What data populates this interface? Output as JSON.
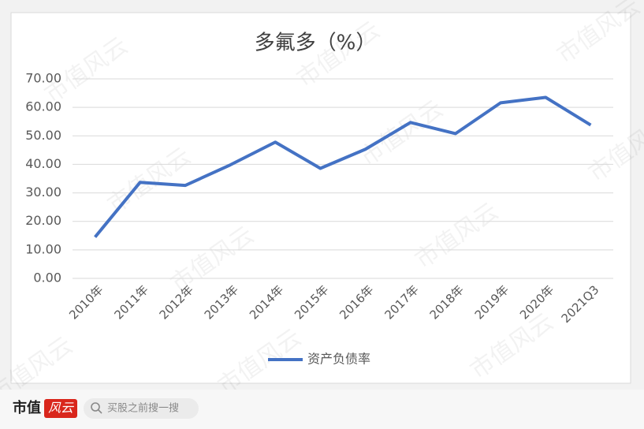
{
  "chart_data": {
    "type": "line",
    "title": "多氟多（%）",
    "categories": [
      "2010年",
      "2011年",
      "2012年",
      "2013年",
      "2014年",
      "2015年",
      "2016年",
      "2017年",
      "2018年",
      "2019年",
      "2020年",
      "2021Q3"
    ],
    "series": [
      {
        "name": "资产负债率",
        "color": "#4472c4",
        "values": [
          14.5,
          33.7,
          32.6,
          39.8,
          47.8,
          38.6,
          45.3,
          54.7,
          50.8,
          61.6,
          63.5,
          53.8
        ]
      }
    ],
    "ylim": [
      0,
      70
    ],
    "yticks": [
      {
        "value": 0,
        "label": "0.00"
      },
      {
        "value": 10,
        "label": "10.00"
      },
      {
        "value": 20,
        "label": "20.00"
      },
      {
        "value": 30,
        "label": "30.00"
      },
      {
        "value": 40,
        "label": "40.00"
      },
      {
        "value": 50,
        "label": "50.00"
      },
      {
        "value": 60,
        "label": "60.00"
      },
      {
        "value": 70,
        "label": "70.00"
      }
    ],
    "grid": true,
    "legend": "bottom"
  },
  "watermark": "市值风云",
  "footer": {
    "logo_left": "市值",
    "logo_right": "风云",
    "search": "买股之前搜一搜"
  }
}
